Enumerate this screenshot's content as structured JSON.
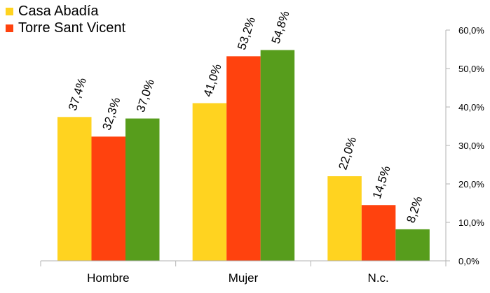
{
  "chart_data": {
    "type": "bar",
    "categories": [
      "Hombre",
      "Mujer",
      "N.c."
    ],
    "series": [
      {
        "name": "Casa Abadía",
        "color": "#ffd320",
        "values": [
          37.4,
          41.0,
          22.0
        ],
        "labels": [
          "37,4%",
          "41,0%",
          "22,0%"
        ]
      },
      {
        "name": "Torre Sant Vicent",
        "color": "#ff420e",
        "values": [
          32.3,
          53.2,
          14.5
        ],
        "labels": [
          "32,3%",
          "53,2%",
          "14,5%"
        ]
      },
      {
        "name": "",
        "color": "#579d1c",
        "values": [
          37.0,
          54.8,
          8.2
        ],
        "labels": [
          "37,0%",
          "54,8%",
          "8,2%"
        ]
      }
    ],
    "ylim": [
      0,
      60
    ],
    "yticks": [
      0,
      10,
      20,
      30,
      40,
      50,
      60
    ],
    "ytick_labels": [
      "0,0%",
      "10,0%",
      "20,0%",
      "30,0%",
      "40,0%",
      "50,0%",
      "60,0%"
    ],
    "y_axis_side": "right",
    "grid": false,
    "legend": {
      "placement": "top-left"
    },
    "title": "",
    "xlabel": "",
    "ylabel": ""
  }
}
